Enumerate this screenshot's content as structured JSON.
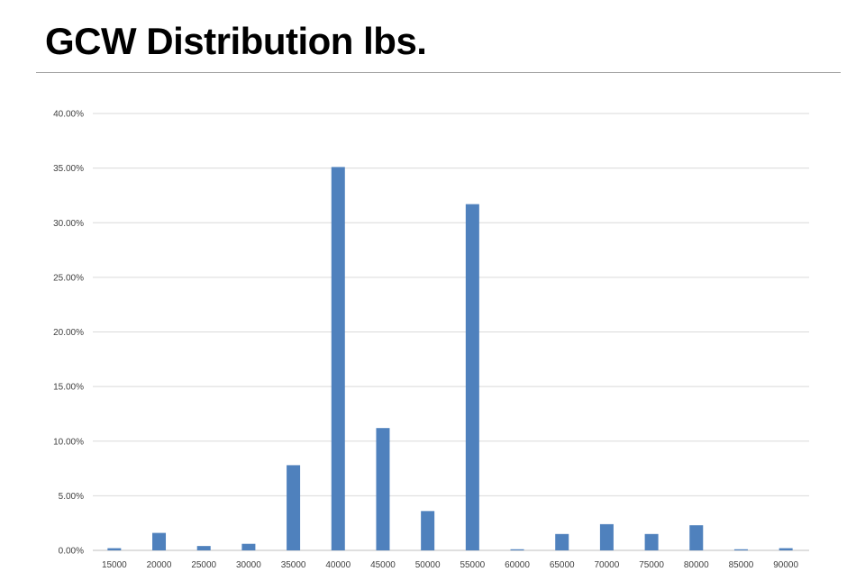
{
  "slide": {
    "title": "GCW Distribution lbs."
  },
  "chart_data": {
    "type": "bar",
    "title": "",
    "xlabel": "",
    "ylabel": "",
    "categories": [
      "15000",
      "20000",
      "25000",
      "30000",
      "35000",
      "40000",
      "45000",
      "50000",
      "55000",
      "60000",
      "65000",
      "70000",
      "75000",
      "80000",
      "85000",
      "90000"
    ],
    "series": [
      {
        "values": [
          0.2,
          1.6,
          0.4,
          0.6,
          7.8,
          35.1,
          11.2,
          3.6,
          31.7,
          0.1,
          1.5,
          2.4,
          1.5,
          2.3,
          0.1,
          0.2
        ]
      }
    ],
    "ylim": [
      0,
      40
    ],
    "yticks": [
      0,
      5,
      10,
      15,
      20,
      25,
      30,
      35,
      40
    ],
    "ytick_labels": [
      "0.00%",
      "5.00%",
      "10.00%",
      "15.00%",
      "20.00%",
      "25.00%",
      "30.00%",
      "35.00%",
      "40.00%"
    ],
    "grid": true,
    "legend": "none",
    "bar_color": "#4f81bd",
    "grid_color": "#d9d9d9"
  }
}
